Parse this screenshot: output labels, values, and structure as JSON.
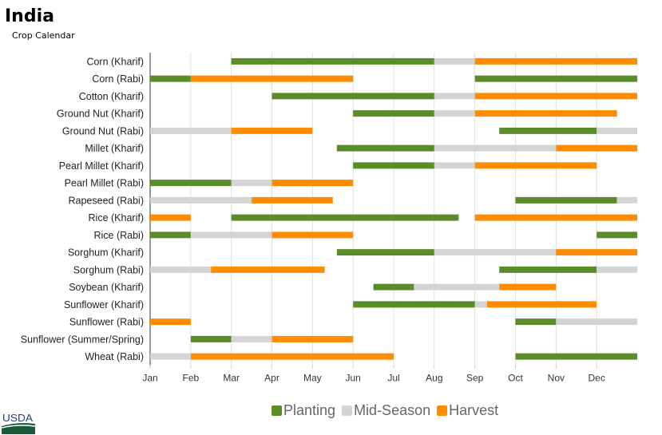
{
  "title": "India",
  "subtitle": "Crop Calendar",
  "logo_text": "USDA",
  "chart_data": {
    "type": "bar",
    "orientation": "horizontal-gantt",
    "x_unit": "month (1 = start of Jan, 13 = end of Dec)",
    "xlim": [
      1,
      13
    ],
    "x_ticks": [
      "Jan",
      "Feb",
      "Mar",
      "Apr",
      "May",
      "Jun",
      "Jul",
      "Aug",
      "Sep",
      "Oct",
      "Nov",
      "Dec"
    ],
    "grid": true,
    "legend_position": "bottom",
    "phases": [
      {
        "name": "Planting",
        "color": "#5b8c2a"
      },
      {
        "name": "Mid-Season",
        "color": "#d4d4d4"
      },
      {
        "name": "Harvest",
        "color": "#ff8c00"
      }
    ],
    "rows": [
      {
        "label": "Corn (Kharif)",
        "segments": [
          [
            0,
            3,
            8
          ],
          [
            1,
            8,
            9
          ],
          [
            2,
            9,
            13
          ]
        ]
      },
      {
        "label": "Corn (Rabi)",
        "segments": [
          [
            0,
            1,
            2
          ],
          [
            2,
            2,
            6
          ],
          [
            0,
            9,
            13
          ]
        ]
      },
      {
        "label": "Cotton (Kharif)",
        "segments": [
          [
            0,
            4,
            8
          ],
          [
            1,
            8,
            9
          ],
          [
            2,
            9,
            13
          ]
        ]
      },
      {
        "label": "Ground Nut (Kharif)",
        "segments": [
          [
            0,
            6,
            8
          ],
          [
            1,
            8,
            9
          ],
          [
            2,
            9,
            12.5
          ]
        ]
      },
      {
        "label": "Ground Nut (Rabi)",
        "segments": [
          [
            1,
            1,
            3
          ],
          [
            2,
            3,
            5
          ],
          [
            0,
            9.6,
            12
          ],
          [
            1,
            12,
            13
          ]
        ]
      },
      {
        "label": "Millet (Kharif)",
        "segments": [
          [
            0,
            5.6,
            8
          ],
          [
            1,
            8,
            11
          ],
          [
            2,
            11,
            13
          ]
        ]
      },
      {
        "label": "Pearl Millet (Kharif)",
        "segments": [
          [
            0,
            6,
            8
          ],
          [
            1,
            8,
            9
          ],
          [
            2,
            9,
            12
          ]
        ]
      },
      {
        "label": "Pearl Millet (Rabi)",
        "segments": [
          [
            0,
            1,
            3
          ],
          [
            1,
            3,
            4
          ],
          [
            2,
            4,
            6
          ]
        ]
      },
      {
        "label": "Rapeseed (Rabi)",
        "segments": [
          [
            1,
            1,
            3.5
          ],
          [
            2,
            3.5,
            5.5
          ],
          [
            0,
            10,
            12.5
          ],
          [
            1,
            12.5,
            13
          ]
        ]
      },
      {
        "label": "Rice (Kharif)",
        "segments": [
          [
            2,
            1,
            2
          ],
          [
            0,
            3,
            8.6
          ],
          [
            2,
            9,
            13
          ]
        ]
      },
      {
        "label": "Rice (Rabi)",
        "segments": [
          [
            0,
            1,
            2
          ],
          [
            1,
            2,
            4
          ],
          [
            2,
            4,
            6
          ],
          [
            0,
            12,
            13
          ]
        ]
      },
      {
        "label": "Sorghum (Kharif)",
        "segments": [
          [
            0,
            5.6,
            8
          ],
          [
            1,
            8,
            11
          ],
          [
            2,
            11,
            13
          ]
        ]
      },
      {
        "label": "Sorghum (Rabi)",
        "segments": [
          [
            1,
            1,
            2.5
          ],
          [
            2,
            2.5,
            5.3
          ],
          [
            0,
            9.6,
            12
          ],
          [
            1,
            12,
            13
          ]
        ]
      },
      {
        "label": "Soybean (Kharif)",
        "segments": [
          [
            0,
            6.5,
            7.5
          ],
          [
            1,
            7.5,
            9.6
          ],
          [
            2,
            9.6,
            11
          ]
        ]
      },
      {
        "label": "Sunflower (Kharif)",
        "segments": [
          [
            0,
            6,
            9
          ],
          [
            1,
            9,
            9.3
          ],
          [
            2,
            9.3,
            12
          ]
        ]
      },
      {
        "label": "Sunflower (Rabi)",
        "segments": [
          [
            2,
            1,
            2
          ],
          [
            0,
            10,
            11
          ],
          [
            1,
            11,
            13
          ]
        ]
      },
      {
        "label": "Sunflower (Summer/Spring)",
        "segments": [
          [
            0,
            2,
            3
          ],
          [
            1,
            3,
            4
          ],
          [
            2,
            4,
            6
          ]
        ]
      },
      {
        "label": "Wheat (Rabi)",
        "segments": [
          [
            1,
            1,
            2
          ],
          [
            2,
            2,
            7
          ],
          [
            0,
            10,
            13
          ]
        ]
      }
    ]
  }
}
